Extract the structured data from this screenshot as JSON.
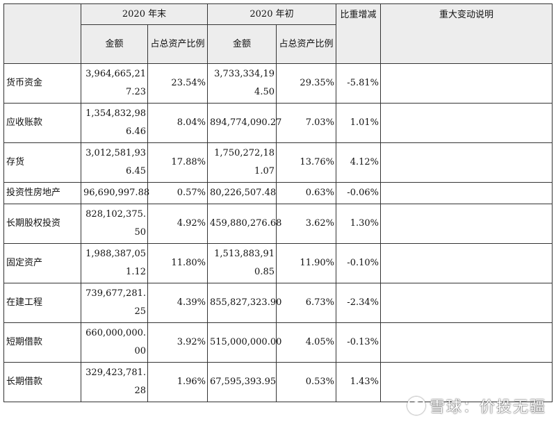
{
  "header": {
    "period_end": "2020 年末",
    "period_start": "2020 年初",
    "amount": "金额",
    "ratio": "占总资产比例",
    "change": "比重增减",
    "note": "重大变动说明"
  },
  "rows": [
    {
      "item": "货币资金",
      "end_amount": "3,964,665,217.23",
      "end_ratio": "23.54%",
      "start_amount": "3,733,334,194.50",
      "start_ratio": "29.35%",
      "change": "-5.81%",
      "note": ""
    },
    {
      "item": "应收账款",
      "end_amount": "1,354,832,986.46",
      "end_ratio": "8.04%",
      "start_amount": "894,774,090.27",
      "start_ratio": "7.03%",
      "change": "1.01%",
      "note": ""
    },
    {
      "item": "存货",
      "end_amount": "3,012,581,936.45",
      "end_ratio": "17.88%",
      "start_amount": "1,750,272,181.07",
      "start_ratio": "13.76%",
      "change": "4.12%",
      "note": ""
    },
    {
      "item": "投资性房地产",
      "end_amount": "96,690,997.88",
      "end_ratio": "0.57%",
      "start_amount": "80,226,507.48",
      "start_ratio": "0.63%",
      "change": "-0.06%",
      "note": ""
    },
    {
      "item": "长期股权投资",
      "end_amount": "828,102,375.50",
      "end_ratio": "4.92%",
      "start_amount": "459,880,276.68",
      "start_ratio": "3.62%",
      "change": "1.30%",
      "note": ""
    },
    {
      "item": "固定资产",
      "end_amount": "1,988,387,051.12",
      "end_ratio": "11.80%",
      "start_amount": "1,513,883,910.85",
      "start_ratio": "11.90%",
      "change": "-0.10%",
      "note": ""
    },
    {
      "item": "在建工程",
      "end_amount": "739,677,281.25",
      "end_ratio": "4.39%",
      "start_amount": "855,827,323.90",
      "start_ratio": "6.73%",
      "change": "-2.34%",
      "note": ""
    },
    {
      "item": "短期借款",
      "end_amount": "660,000,000.00",
      "end_ratio": "3.92%",
      "start_amount": "515,000,000.00",
      "start_ratio": "4.05%",
      "change": "-0.13%",
      "note": ""
    },
    {
      "item": "长期借款",
      "end_amount": "329,423,781.28",
      "end_ratio": "1.96%",
      "start_amount": "67,595,393.95",
      "start_ratio": "0.53%",
      "change": "1.43%",
      "note": ""
    }
  ],
  "watermark": "雪球：价投无疆"
}
